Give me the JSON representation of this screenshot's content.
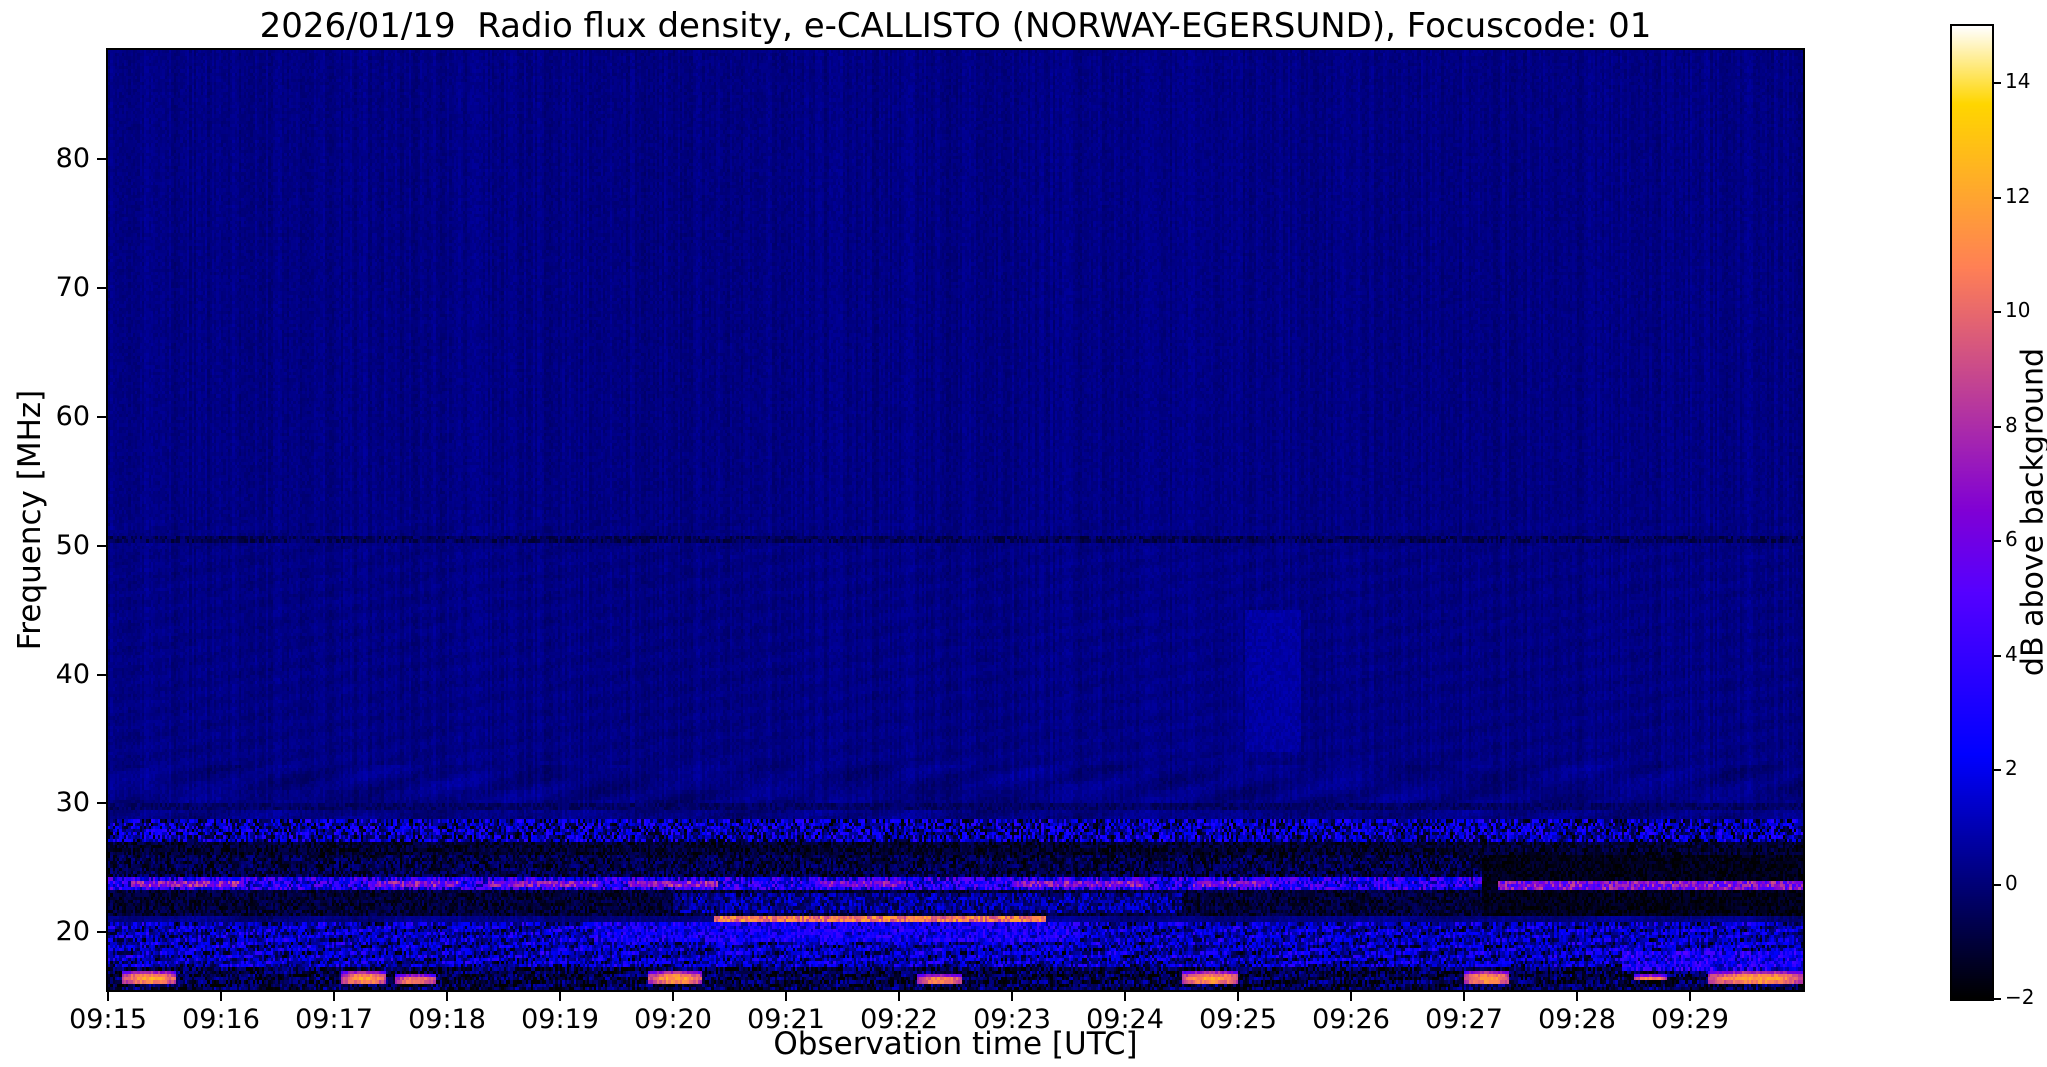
{
  "chart_data": {
    "type": "heatmap",
    "title": "2026/01/19  Radio flux density, e-CALLISTO (NORWAY-EGERSUND), Focuscode: 01",
    "xlabel": "Observation time [UTC]",
    "ylabel": "Frequency [MHz]",
    "x_tick_labels": [
      "09:15",
      "09:16",
      "09:17",
      "09:18",
      "09:19",
      "09:20",
      "09:21",
      "09:22",
      "09:23",
      "09:24",
      "09:25",
      "09:26",
      "09:27",
      "09:28",
      "09:29"
    ],
    "x_range_minutes": [
      0,
      15
    ],
    "y_tick_values_mhz": [
      20,
      30,
      40,
      50,
      60,
      70,
      80
    ],
    "y_range_mhz": [
      15.5,
      88.5
    ],
    "colorbar": {
      "label": "dB above background",
      "tick_values_db": [
        -2,
        0,
        2,
        4,
        6,
        8,
        10,
        12,
        14
      ],
      "range_db": [
        -2,
        15
      ],
      "colormap": "gnuplot2 (black-blue-violet-magenta-orange-yellow-white)"
    },
    "background_db": 0.2,
    "grid": false,
    "features": [
      {
        "kind": "band",
        "name": "faint-rfi-line-50.5MHz",
        "f_lo": 50.25,
        "f_hi": 50.75,
        "t0": 0,
        "t1": 15,
        "db": -0.5,
        "var": 0.7
      },
      {
        "kind": "band",
        "name": "faint-dark-line-29.8MHz",
        "f_lo": 29.55,
        "f_hi": 30.0,
        "t0": 0,
        "t1": 15,
        "db": -0.3,
        "var": 0.5
      },
      {
        "kind": "patch",
        "name": "faint-vertical-haze-0925",
        "f_lo": 34,
        "f_hi": 45,
        "t0": 10.05,
        "t1": 10.55,
        "db": 0.7,
        "var": 0.3,
        "blend": true
      },
      {
        "kind": "band",
        "name": "speckled-rfi-band-27-29MHz",
        "f_lo": 27.1,
        "f_hi": 28.7,
        "t0": 0,
        "t1": 15,
        "db": 0.8,
        "var": 3.0
      },
      {
        "kind": "band",
        "name": "dark-band-26-27MHz",
        "f_lo": 25.9,
        "f_hi": 27.1,
        "t0": 0,
        "t1": 15,
        "db": -1.2,
        "var": 0.9
      },
      {
        "kind": "band",
        "name": "dark-band-24-26MHz",
        "f_lo": 24.3,
        "f_hi": 25.9,
        "t0": 0,
        "t1": 15,
        "db": -0.8,
        "var": 1.3
      },
      {
        "kind": "band",
        "name": "dark-band-21-23MHz",
        "f_lo": 21.3,
        "f_hi": 23.3,
        "t0": 0,
        "t1": 15,
        "db": -1.1,
        "var": 0.9
      },
      {
        "kind": "patch",
        "name": "blue-fuzz-21-23MHz",
        "f_lo": 21.4,
        "f_hi": 23.1,
        "t0": 5.0,
        "t1": 9.5,
        "db": 0.3,
        "var": 2.0,
        "blend": true
      },
      {
        "kind": "band",
        "name": "noisy-blue-region-17-21MHz",
        "f_lo": 17.3,
        "f_hi": 20.8,
        "t0": 0,
        "t1": 15,
        "db": 1.0,
        "var": 2.2,
        "wave": 1.0
      },
      {
        "kind": "patch",
        "name": "bright-cloud-19-21MHz",
        "f_lo": 19.2,
        "f_hi": 20.7,
        "t0": 4.3,
        "t1": 8.6,
        "db": 2.2,
        "var": 2.2,
        "blend": true
      },
      {
        "kind": "band",
        "name": "bottom-band-16-17MHz",
        "f_lo": 15.5,
        "f_hi": 17.3,
        "t0": 0,
        "t1": 15,
        "db": -0.8,
        "var": 1.6,
        "wave": 0.6
      },
      {
        "kind": "band",
        "name": "rfi-line-23.3-24.3MHz",
        "f_lo": 23.3,
        "f_hi": 24.3,
        "t0": 0,
        "t1": 15,
        "db": 3.0,
        "var": 3.0
      },
      {
        "kind": "band",
        "name": "dark-block-right-21-26MHz",
        "f_lo": 21.3,
        "f_hi": 26.0,
        "t0": 12.15,
        "t1": 15,
        "db": -1.6,
        "var": 0.6
      },
      {
        "kind": "patch",
        "name": "line23.7-bright-seg-1",
        "f_lo": 23.45,
        "f_hi": 24.05,
        "t0": 0.2,
        "t1": 1.2,
        "db": 7.0,
        "var": 2.5,
        "blend": true
      },
      {
        "kind": "patch",
        "name": "line23.7-bright-seg-2",
        "f_lo": 23.45,
        "f_hi": 24.05,
        "t0": 2.3,
        "t1": 3.1,
        "db": 6.5,
        "var": 2.5,
        "blend": true
      },
      {
        "kind": "patch",
        "name": "line23.7-bright-seg-3",
        "f_lo": 23.45,
        "f_hi": 24.05,
        "t0": 3.35,
        "t1": 4.35,
        "db": 6.5,
        "var": 2.5,
        "blend": true
      },
      {
        "kind": "patch",
        "name": "line23.7-bright-seg-4",
        "f_lo": 23.45,
        "f_hi": 24.05,
        "t0": 4.6,
        "t1": 5.4,
        "db": 7.0,
        "var": 2.5,
        "blend": true
      },
      {
        "kind": "patch",
        "name": "line23.7-bright-seg-5",
        "f_lo": 23.45,
        "f_hi": 24.05,
        "t0": 6.3,
        "t1": 7.05,
        "db": 6.0,
        "var": 2.5,
        "blend": true
      },
      {
        "kind": "patch",
        "name": "line23.7-bright-seg-6",
        "f_lo": 23.45,
        "f_hi": 24.05,
        "t0": 8.0,
        "t1": 9.2,
        "db": 6.5,
        "var": 2.5,
        "blend": true
      },
      {
        "kind": "patch",
        "name": "line23.7-bright-seg-7",
        "f_lo": 23.45,
        "f_hi": 24.05,
        "t0": 9.6,
        "t1": 10.3,
        "db": 6.0,
        "var": 2.5,
        "blend": true
      },
      {
        "kind": "patch",
        "name": "line23.6-bright-right",
        "f_lo": 23.35,
        "f_hi": 23.9,
        "t0": 12.3,
        "t1": 15,
        "db": 6.5,
        "var": 2.5,
        "blend": true
      },
      {
        "kind": "band",
        "name": "bright-line-21MHz-0920-0923",
        "f_lo": 20.85,
        "f_hi": 21.35,
        "t0": 5.35,
        "t1": 8.3,
        "db": 10.5,
        "var": 2.0
      },
      {
        "kind": "patch",
        "name": "bottom-right-blue-activity",
        "f_lo": 17.0,
        "f_hi": 18.4,
        "t0": 13.4,
        "t1": 15,
        "db": 2.5,
        "var": 2.8,
        "blend": true
      },
      {
        "kind": "blob",
        "name": "burst-0915.2",
        "f_lo": 16.1,
        "f_hi": 16.95,
        "t0": 0.12,
        "t1": 0.6,
        "db": 12
      },
      {
        "kind": "blob",
        "name": "burst-0917.1",
        "f_lo": 16.1,
        "f_hi": 16.9,
        "t0": 2.05,
        "t1": 2.45,
        "db": 12
      },
      {
        "kind": "blob",
        "name": "burst-0917.6",
        "f_lo": 16.1,
        "f_hi": 16.85,
        "t0": 2.55,
        "t1": 2.9,
        "db": 11
      },
      {
        "kind": "blob",
        "name": "burst-0920.0",
        "f_lo": 16.05,
        "f_hi": 16.95,
        "t0": 4.78,
        "t1": 5.25,
        "db": 12
      },
      {
        "kind": "blob",
        "name": "burst-0922.3",
        "f_lo": 16.1,
        "f_hi": 16.85,
        "t0": 7.15,
        "t1": 7.55,
        "db": 11.5
      },
      {
        "kind": "blob",
        "name": "burst-0924.7",
        "f_lo": 16.05,
        "f_hi": 16.9,
        "t0": 9.5,
        "t1": 10.0,
        "db": 12
      },
      {
        "kind": "blob",
        "name": "burst-0927.1",
        "f_lo": 16.1,
        "f_hi": 16.9,
        "t0": 12.0,
        "t1": 12.4,
        "db": 12
      },
      {
        "kind": "blob",
        "name": "burst-0928.6",
        "f_lo": 16.15,
        "f_hi": 16.8,
        "t0": 13.5,
        "t1": 13.8,
        "db": 11
      },
      {
        "kind": "blob",
        "name": "burst-0929.3",
        "f_lo": 16.0,
        "f_hi": 16.95,
        "t0": 14.15,
        "t1": 15.0,
        "db": 12
      }
    ]
  }
}
